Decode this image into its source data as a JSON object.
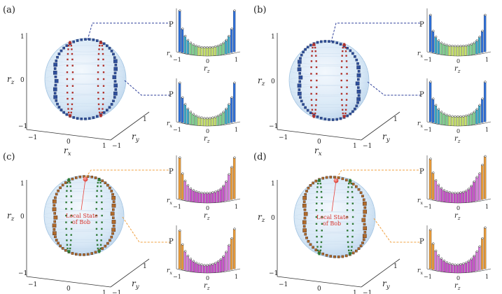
{
  "figure": {
    "panels": [
      {
        "id": "a",
        "label": "(a)",
        "theme": "blue"
      },
      {
        "id": "b",
        "label": "(b)",
        "theme": "blue"
      },
      {
        "id": "c",
        "label": "(c)",
        "theme": "orange",
        "annotation": [
          "Local State",
          "of Bob"
        ]
      },
      {
        "id": "d",
        "label": "(d)",
        "theme": "orange",
        "annotation": [
          "Local State",
          "of Bob"
        ]
      }
    ],
    "sphere_axes": {
      "rx_label": "r",
      "rx_sub": "x",
      "ry_label": "r",
      "ry_sub": "y",
      "rz_label": "r",
      "rz_sub": "z",
      "ticks": {
        "one": "1",
        "zero": "0",
        "neg_one": "−1"
      }
    },
    "histogram_axes": {
      "p_label": "P",
      "rz_label": "r",
      "rz_sub": "z",
      "rx_label": "r",
      "rx_sub": "x",
      "ticks": {
        "neg_one": "−1",
        "zero": "0",
        "one": "1"
      }
    },
    "colors": {
      "sphere_fill": "#dcebf7",
      "sphere_edge": "#9cc0e0",
      "blue_points": "#2e4f9a",
      "red_points": "#b0302a",
      "green_points": "#2f7a36",
      "orange_points": "#b06a2a",
      "blue_leader": "#2e3f9a",
      "orange_leader": "#f0a040",
      "bob_marker": "#e8403a"
    }
  },
  "chart_data": [
    {
      "panel": "a",
      "type": "bar",
      "title": "P vs r_z (upper)",
      "x": [
        -1,
        -0.9,
        -0.8,
        -0.7,
        -0.6,
        -0.5,
        -0.4,
        -0.3,
        -0.2,
        -0.1,
        0,
        0.1,
        0.2,
        0.3,
        0.4,
        0.5,
        0.6,
        0.7,
        0.8,
        0.9,
        1
      ],
      "values": [
        0.95,
        0.55,
        0.4,
        0.32,
        0.27,
        0.24,
        0.22,
        0.21,
        0.2,
        0.2,
        0.2,
        0.2,
        0.2,
        0.21,
        0.22,
        0.24,
        0.27,
        0.32,
        0.4,
        0.55,
        0.95
      ],
      "xlabel": "r_z",
      "ylabel": "P"
    },
    {
      "panel": "a",
      "type": "bar",
      "title": "P vs r_z (lower)",
      "x": [
        -1,
        -0.9,
        -0.8,
        -0.7,
        -0.6,
        -0.5,
        -0.4,
        -0.3,
        -0.2,
        -0.1,
        0,
        0.1,
        0.2,
        0.3,
        0.4,
        0.5,
        0.6,
        0.7,
        0.8,
        0.9,
        1
      ],
      "values": [
        0.9,
        0.58,
        0.44,
        0.35,
        0.29,
        0.25,
        0.22,
        0.2,
        0.19,
        0.18,
        0.18,
        0.18,
        0.19,
        0.2,
        0.22,
        0.25,
        0.29,
        0.35,
        0.44,
        0.58,
        0.9
      ],
      "xlabel": "r_z",
      "ylabel": "P"
    },
    {
      "panel": "b",
      "type": "bar",
      "title": "P vs r_z (upper)",
      "x": [
        -1,
        -0.9,
        -0.8,
        -0.7,
        -0.6,
        -0.5,
        -0.4,
        -0.3,
        -0.2,
        -0.1,
        0,
        0.1,
        0.2,
        0.3,
        0.4,
        0.5,
        0.6,
        0.7,
        0.8,
        0.9,
        1
      ],
      "values": [
        0.85,
        0.5,
        0.38,
        0.31,
        0.27,
        0.25,
        0.24,
        0.23,
        0.23,
        0.23,
        0.23,
        0.23,
        0.23,
        0.23,
        0.24,
        0.25,
        0.27,
        0.31,
        0.38,
        0.5,
        0.85
      ],
      "xlabel": "r_z",
      "ylabel": "P"
    },
    {
      "panel": "b",
      "type": "bar",
      "title": "P vs r_z (lower)",
      "x": [
        -1,
        -0.9,
        -0.8,
        -0.7,
        -0.6,
        -0.5,
        -0.4,
        -0.3,
        -0.2,
        -0.1,
        0,
        0.1,
        0.2,
        0.3,
        0.4,
        0.5,
        0.6,
        0.7,
        0.8,
        0.9,
        1
      ],
      "values": [
        0.92,
        0.55,
        0.42,
        0.34,
        0.29,
        0.26,
        0.24,
        0.23,
        0.22,
        0.22,
        0.22,
        0.22,
        0.22,
        0.23,
        0.24,
        0.26,
        0.29,
        0.34,
        0.42,
        0.55,
        0.92
      ],
      "xlabel": "r_z",
      "ylabel": "P"
    },
    {
      "panel": "c",
      "type": "bar",
      "title": "P vs r_z (upper)",
      "x": [
        -1,
        -0.9,
        -0.8,
        -0.7,
        -0.6,
        -0.5,
        -0.4,
        -0.3,
        -0.2,
        -0.1,
        0,
        0.1,
        0.2,
        0.3,
        0.4,
        0.5,
        0.6,
        0.7,
        0.8,
        0.9,
        1
      ],
      "values": [
        0.95,
        0.6,
        0.45,
        0.36,
        0.3,
        0.27,
        0.25,
        0.24,
        0.23,
        0.23,
        0.23,
        0.23,
        0.24,
        0.25,
        0.27,
        0.3,
        0.36,
        0.45,
        0.6,
        0.75,
        0.95
      ],
      "xlabel": "r_z",
      "ylabel": "P"
    },
    {
      "panel": "c",
      "type": "bar",
      "title": "P vs r_z (lower)",
      "x": [
        -1,
        -0.9,
        -0.8,
        -0.7,
        -0.6,
        -0.5,
        -0.4,
        -0.3,
        -0.2,
        -0.1,
        0,
        0.1,
        0.2,
        0.3,
        0.4,
        0.5,
        0.6,
        0.7,
        0.8,
        0.9,
        1
      ],
      "values": [
        0.88,
        0.58,
        0.44,
        0.35,
        0.29,
        0.25,
        0.22,
        0.2,
        0.19,
        0.18,
        0.18,
        0.19,
        0.2,
        0.22,
        0.25,
        0.29,
        0.35,
        0.44,
        0.58,
        0.72,
        0.92
      ],
      "xlabel": "r_z",
      "ylabel": "P"
    },
    {
      "panel": "d",
      "type": "bar",
      "title": "P vs r_z (upper)",
      "x": [
        -1,
        -0.9,
        -0.8,
        -0.7,
        -0.6,
        -0.5,
        -0.4,
        -0.3,
        -0.2,
        -0.1,
        0,
        0.1,
        0.2,
        0.3,
        0.4,
        0.5,
        0.6,
        0.7,
        0.8,
        0.9,
        1
      ],
      "values": [
        0.92,
        0.62,
        0.46,
        0.37,
        0.31,
        0.27,
        0.25,
        0.24,
        0.23,
        0.23,
        0.23,
        0.24,
        0.25,
        0.27,
        0.31,
        0.37,
        0.46,
        0.55,
        0.62,
        0.8,
        0.98
      ],
      "xlabel": "r_z",
      "ylabel": "P"
    },
    {
      "panel": "d",
      "type": "bar",
      "title": "P vs r_z (lower)",
      "x": [
        -1,
        -0.9,
        -0.8,
        -0.7,
        -0.6,
        -0.5,
        -0.4,
        -0.3,
        -0.2,
        -0.1,
        0,
        0.1,
        0.2,
        0.3,
        0.4,
        0.5,
        0.6,
        0.7,
        0.8,
        0.9,
        1
      ],
      "values": [
        0.9,
        0.6,
        0.45,
        0.36,
        0.3,
        0.26,
        0.23,
        0.21,
        0.2,
        0.19,
        0.19,
        0.2,
        0.21,
        0.23,
        0.26,
        0.3,
        0.36,
        0.45,
        0.55,
        0.72,
        0.95
      ],
      "xlabel": "r_z",
      "ylabel": "P"
    }
  ]
}
